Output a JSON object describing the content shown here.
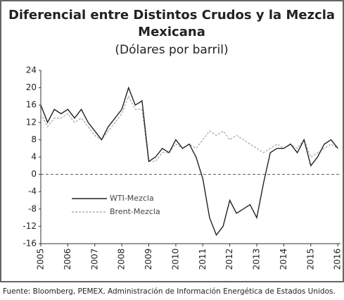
{
  "chart_data": {
    "type": "line",
    "title": [
      "Diferencial entre Distintos Crudos y la Mezcla",
      "Mexicana"
    ],
    "subtitle": "(Dólares por barril)",
    "x": [
      2005,
      2005.25,
      2005.5,
      2005.75,
      2006,
      2006.25,
      2006.5,
      2006.75,
      2007,
      2007.25,
      2007.5,
      2007.75,
      2008,
      2008.25,
      2008.5,
      2008.75,
      2009,
      2009.25,
      2009.5,
      2009.75,
      2010,
      2010.25,
      2010.5,
      2010.75,
      2011,
      2011.25,
      2011.5,
      2011.75,
      2012,
      2012.25,
      2012.5,
      2012.75,
      2013,
      2013.25,
      2013.5,
      2013.75,
      2014,
      2014.25,
      2014.5,
      2014.75,
      2015,
      2015.25,
      2015.5,
      2015.75,
      2016
    ],
    "series": [
      {
        "name": "WTI-Mezcla",
        "color": "#222222",
        "dash": false,
        "values": [
          16,
          12,
          15,
          14,
          15,
          13,
          15,
          12,
          10,
          8,
          11,
          13,
          15,
          20,
          16,
          17,
          3,
          4,
          6,
          5,
          8,
          6,
          7,
          4,
          -1,
          -10,
          -14,
          -12,
          -6,
          -9,
          -8,
          -7,
          -10,
          -2,
          5,
          6,
          6,
          7,
          5,
          8,
          2,
          4,
          7,
          8,
          6
        ]
      },
      {
        "name": "Brent-Mezcla",
        "color": "#b0b0b0",
        "dash": true,
        "values": [
          14,
          11,
          13,
          13,
          14,
          12,
          13,
          11,
          9,
          8,
          10,
          12,
          14,
          18,
          15,
          15,
          3,
          3,
          5,
          5,
          7,
          6,
          7,
          6,
          8,
          10,
          9,
          10,
          8,
          9,
          8,
          7,
          6,
          5,
          6,
          7,
          6,
          7,
          6,
          8,
          4,
          5,
          6,
          7,
          6
        ]
      }
    ],
    "xlim": [
      2005,
      2016.1
    ],
    "xticks": [
      2005,
      2006,
      2007,
      2008,
      2009,
      2010,
      2011,
      2012,
      2013,
      2014,
      2015,
      2016
    ],
    "ylim": [
      -16,
      24
    ],
    "yticks": [
      24,
      20,
      16,
      12,
      8,
      4,
      0,
      -4,
      -8,
      -12,
      -16
    ],
    "zero_line": true,
    "source": "Fuente: Bloomberg, PEMEX, Administración de Información Energética de Estados Unidos."
  }
}
